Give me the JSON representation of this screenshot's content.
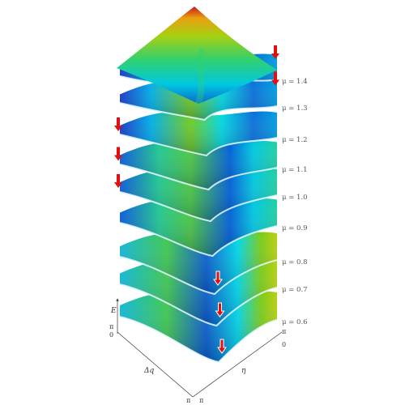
{
  "figure": {
    "layers": [
      {
        "label": "μ = 1.4",
        "arrow_position": "right-edge"
      },
      {
        "label": "μ = 1.3",
        "arrow_position": "right-edge"
      },
      {
        "label": "μ = 1.2",
        "arrow_position": "left-edge"
      },
      {
        "label": "μ = 1.1",
        "arrow_position": "left-edge"
      },
      {
        "label": "μ = 1.0",
        "arrow_position": "left-edge"
      },
      {
        "label": "μ = 0.9",
        "arrow_position": "none"
      },
      {
        "label": "μ = 0.8",
        "arrow_position": "valley"
      },
      {
        "label": "μ = 0.7",
        "arrow_position": "valley"
      },
      {
        "label": "μ = 0.6",
        "arrow_position": "valley"
      }
    ],
    "axes": {
      "energy_label": "E",
      "dq_label": "Δq",
      "eta_label": "η",
      "tick_pi": "π",
      "tick_zero": "0"
    },
    "colormap": [
      "#1a2fb8",
      "#0090e8",
      "#00e6e0",
      "#22d090",
      "#7ccc18",
      "#d7d00a",
      "#e87810",
      "#c81818"
    ],
    "arrow_color": "#e01010"
  }
}
